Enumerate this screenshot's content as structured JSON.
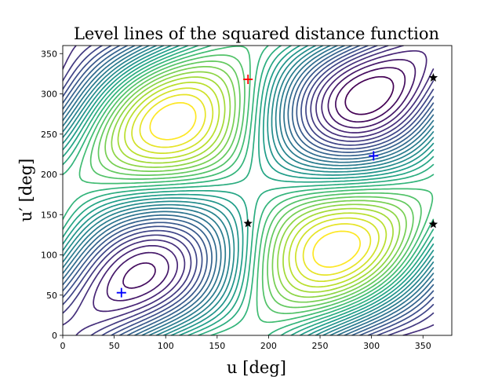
{
  "chart_data": {
    "type": "contour",
    "title": "Level lines of the squared distance function",
    "xlabel": "u [deg]",
    "ylabel": "u′ [deg]",
    "xlim": [
      0,
      378
    ],
    "ylim": [
      0,
      360
    ],
    "x_ticks": [
      0,
      50,
      100,
      150,
      200,
      250,
      300,
      350
    ],
    "y_ticks": [
      0,
      50,
      100,
      150,
      200,
      250,
      300,
      350
    ],
    "grid": false,
    "colormap": "viridis",
    "contour_levels": 30,
    "markers": [
      {
        "symbol": "+",
        "color": "#ff0000",
        "x": 180,
        "y": 318
      },
      {
        "symbol": "+",
        "color": "#0000ff",
        "x": 302,
        "y": 223
      },
      {
        "symbol": "+",
        "color": "#0000ff",
        "x": 57,
        "y": 53
      },
      {
        "symbol": "star",
        "color": "#000000",
        "x": 180,
        "y": 139
      },
      {
        "symbol": "star",
        "color": "#000000",
        "x": 360,
        "y": 320
      },
      {
        "symbol": "star",
        "color": "#000000",
        "x": 360,
        "y": 138
      }
    ]
  }
}
